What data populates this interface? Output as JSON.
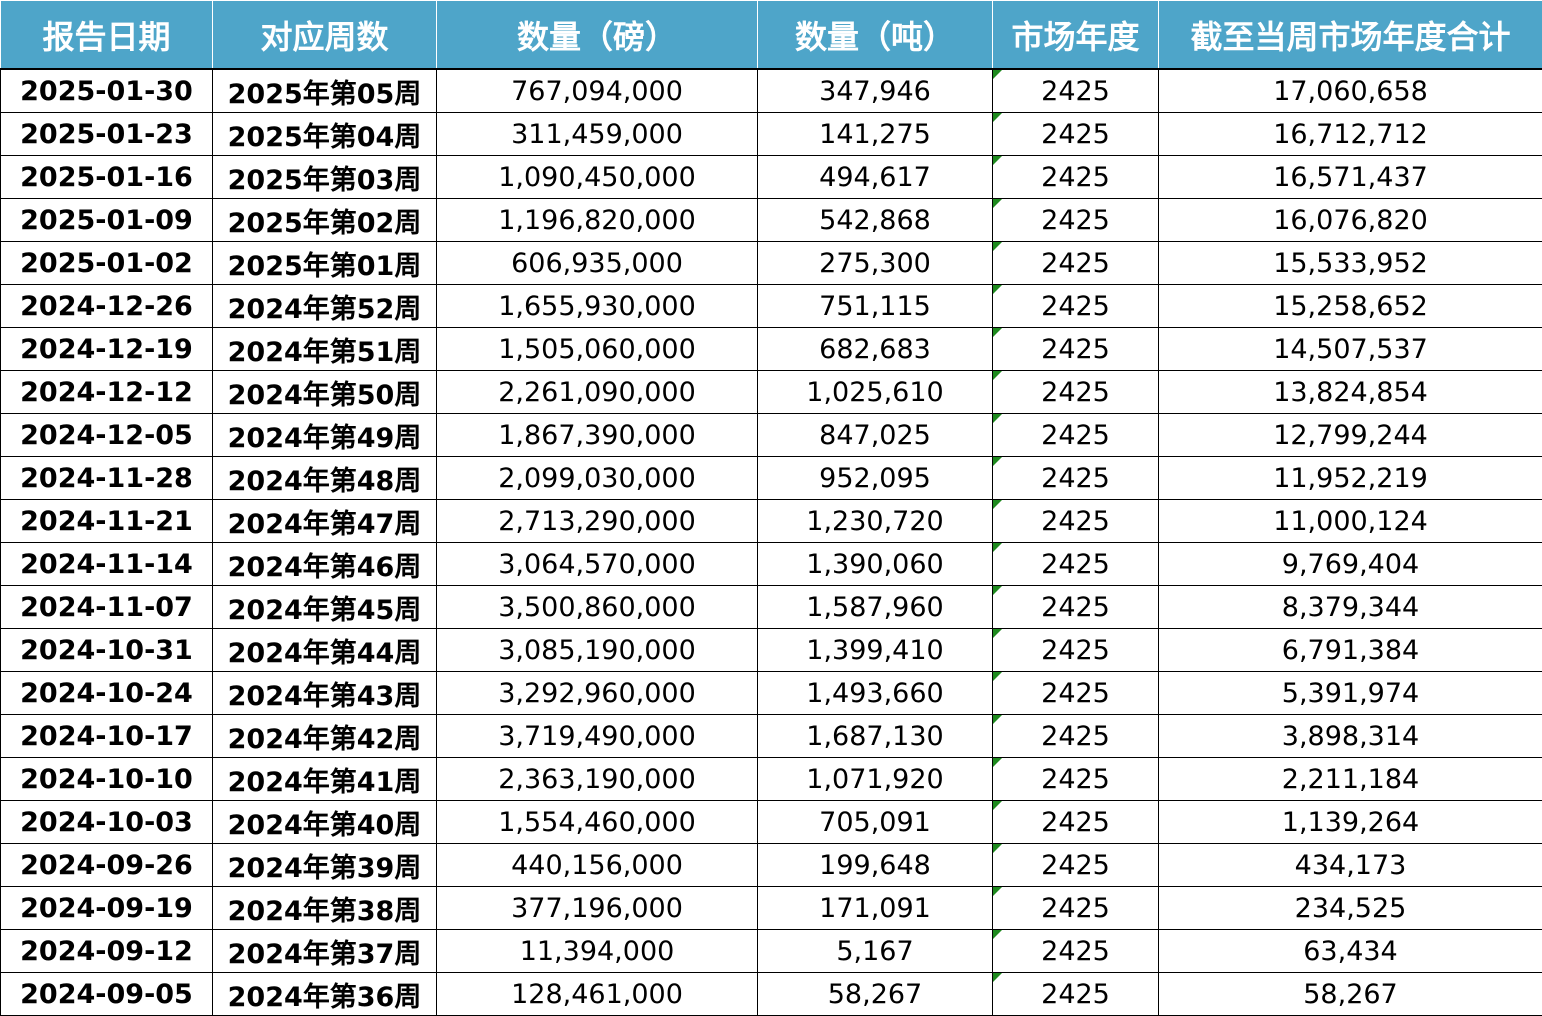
{
  "table": {
    "headers": [
      "报告日期",
      "对应周数",
      "数量（磅）",
      "数量（吨）",
      "市场年度",
      "截至当周市场年度合计"
    ],
    "rows": [
      [
        "2025-01-30",
        "2025年第05周",
        "767,094,000",
        "347,946",
        "2425",
        "17,060,658"
      ],
      [
        "2025-01-23",
        "2025年第04周",
        "311,459,000",
        "141,275",
        "2425",
        "16,712,712"
      ],
      [
        "2025-01-16",
        "2025年第03周",
        "1,090,450,000",
        "494,617",
        "2425",
        "16,571,437"
      ],
      [
        "2025-01-09",
        "2025年第02周",
        "1,196,820,000",
        "542,868",
        "2425",
        "16,076,820"
      ],
      [
        "2025-01-02",
        "2025年第01周",
        "606,935,000",
        "275,300",
        "2425",
        "15,533,952"
      ],
      [
        "2024-12-26",
        "2024年第52周",
        "1,655,930,000",
        "751,115",
        "2425",
        "15,258,652"
      ],
      [
        "2024-12-19",
        "2024年第51周",
        "1,505,060,000",
        "682,683",
        "2425",
        "14,507,537"
      ],
      [
        "2024-12-12",
        "2024年第50周",
        "2,261,090,000",
        "1,025,610",
        "2425",
        "13,824,854"
      ],
      [
        "2024-12-05",
        "2024年第49周",
        "1,867,390,000",
        "847,025",
        "2425",
        "12,799,244"
      ],
      [
        "2024-11-28",
        "2024年第48周",
        "2,099,030,000",
        "952,095",
        "2425",
        "11,952,219"
      ],
      [
        "2024-11-21",
        "2024年第47周",
        "2,713,290,000",
        "1,230,720",
        "2425",
        "11,000,124"
      ],
      [
        "2024-11-14",
        "2024年第46周",
        "3,064,570,000",
        "1,390,060",
        "2425",
        "9,769,404"
      ],
      [
        "2024-11-07",
        "2024年第45周",
        "3,500,860,000",
        "1,587,960",
        "2425",
        "8,379,344"
      ],
      [
        "2024-10-31",
        "2024年第44周",
        "3,085,190,000",
        "1,399,410",
        "2425",
        "6,791,384"
      ],
      [
        "2024-10-24",
        "2024年第43周",
        "3,292,960,000",
        "1,493,660",
        "2425",
        "5,391,974"
      ],
      [
        "2024-10-17",
        "2024年第42周",
        "3,719,490,000",
        "1,687,130",
        "2425",
        "3,898,314"
      ],
      [
        "2024-10-10",
        "2024年第41周",
        "2,363,190,000",
        "1,071,920",
        "2425",
        "2,211,184"
      ],
      [
        "2024-10-03",
        "2024年第40周",
        "1,554,460,000",
        "705,091",
        "2425",
        "1,139,264"
      ],
      [
        "2024-09-26",
        "2024年第39周",
        "440,156,000",
        "199,648",
        "2425",
        "434,173"
      ],
      [
        "2024-09-19",
        "2024年第38周",
        "377,196,000",
        "171,091",
        "2425",
        "234,525"
      ],
      [
        "2024-09-12",
        "2024年第37周",
        "11,394,000",
        "5,167",
        "2425",
        "63,434"
      ],
      [
        "2024-09-05",
        "2024年第36周",
        "128,461,000",
        "58,267",
        "2425",
        "58,267"
      ]
    ]
  },
  "colors": {
    "header_bg": "#4ea5c9",
    "header_text": "#ffffff",
    "cell_border": "#000000",
    "error_flag": "#1e8a1e"
  }
}
